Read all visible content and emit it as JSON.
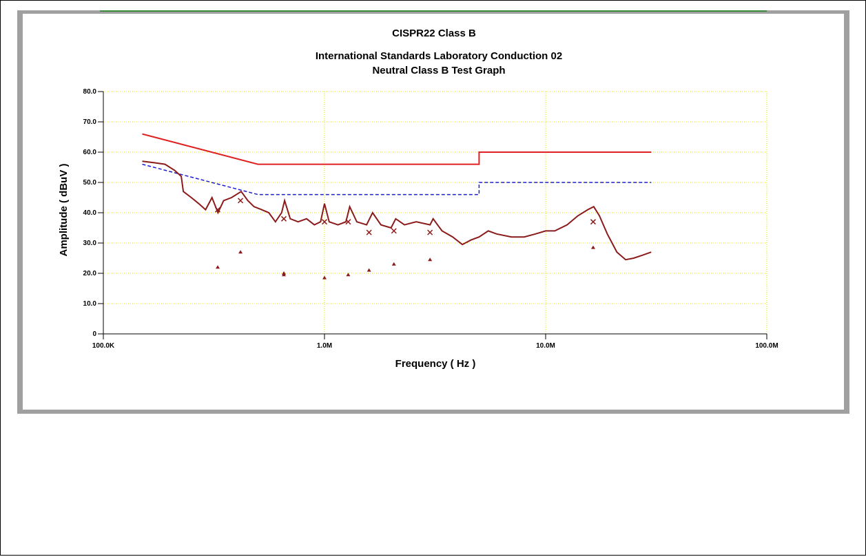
{
  "chart_data": {
    "type": "line",
    "title": "CISPR22 Class B",
    "subtitle": "International Standards Laboratory Conduction 02",
    "subtitle2": "Neutral Class B Test Graph",
    "x_label": "Frequency ( Hz )",
    "y_label": "Amplitude ( dBuV )",
    "log_x": true,
    "grid": true,
    "xlim": [
      100000,
      100000000
    ],
    "ylim": [
      0,
      80
    ],
    "xticks": [
      {
        "value": 100000,
        "label": "100.0K"
      },
      {
        "value": 1000000,
        "label": "1.0M"
      },
      {
        "value": 10000000,
        "label": "10.0M"
      },
      {
        "value": 100000000,
        "label": "100.0M"
      }
    ],
    "yticks": [
      0,
      {
        "value": 10,
        "label": "10.0"
      },
      {
        "value": 20,
        "label": "20.0"
      },
      {
        "value": 30,
        "label": "30.0"
      },
      {
        "value": 40,
        "label": "40.0"
      },
      {
        "value": 50,
        "label": "50.0"
      },
      {
        "value": 60,
        "label": "60.0"
      },
      {
        "value": 70,
        "label": "70.0"
      },
      {
        "value": 80,
        "label": "80.0"
      }
    ],
    "series": [
      {
        "color": "#e02020",
        "style": "solid",
        "x": [
          150000,
          500000,
          5000000,
          5000000,
          30000000
        ],
        "values": [
          66,
          56,
          56,
          60,
          60
        ]
      },
      {
        "color": "#1c1cd0",
        "style": "dashed",
        "x": [
          150000,
          500000,
          5000000,
          5000000,
          30000000
        ],
        "values": [
          56,
          46,
          46,
          50,
          50
        ]
      },
      {
        "color": "#8b1a1a",
        "style": "solid",
        "x": [
          150000,
          170000,
          190000,
          210000,
          225000,
          230000,
          250000,
          270000,
          290000,
          310000,
          330000,
          350000,
          380000,
          420000,
          450000,
          480000,
          520000,
          560000,
          600000,
          640000,
          660000,
          700000,
          760000,
          830000,
          900000,
          960000,
          1000000,
          1050000,
          1150000,
          1250000,
          1300000,
          1400000,
          1550000,
          1650000,
          1800000,
          2000000,
          2100000,
          2300000,
          2600000,
          3000000,
          3100000,
          3400000,
          3800000,
          4200000,
          4600000,
          5000000,
          5500000,
          6000000,
          7000000,
          8000000,
          9000000,
          10000000,
          11000000,
          12500000,
          14000000,
          15500000,
          16500000,
          17500000,
          19000000,
          21000000,
          23000000,
          25000000,
          27500000,
          30000000
        ],
        "values": [
          57,
          56.5,
          56,
          54,
          52,
          47,
          45,
          43,
          41,
          45,
          40,
          44,
          45,
          47,
          44,
          42,
          41,
          40,
          37,
          40,
          44,
          38,
          37,
          38,
          36,
          37,
          43,
          37,
          36,
          37,
          42,
          37,
          36,
          40,
          36,
          35,
          38,
          36,
          37,
          36,
          38,
          34,
          32,
          29.5,
          31,
          32,
          34,
          33,
          32,
          32,
          33,
          34,
          34,
          36,
          39,
          41,
          42,
          39,
          33,
          27,
          24.5,
          25,
          26,
          27
        ]
      },
      {
        "color": "#8b1a1a",
        "marker": "x",
        "x": [
          329000,
          417000,
          655000,
          1000000,
          1280000,
          1590000,
          2060000,
          3000000,
          16400000
        ],
        "values": [
          41,
          44,
          38,
          37,
          37,
          33.5,
          34,
          33.5,
          37
        ]
      },
      {
        "color": "#8b1a1a",
        "marker": "triangle",
        "x": [
          329000,
          417000,
          655000,
          655000,
          1000000,
          1280000,
          1590000,
          2060000,
          3000000,
          16400000
        ],
        "values": [
          22,
          27,
          20,
          19.5,
          18.5,
          19.5,
          21,
          23,
          24.5,
          28.5
        ]
      }
    ]
  }
}
